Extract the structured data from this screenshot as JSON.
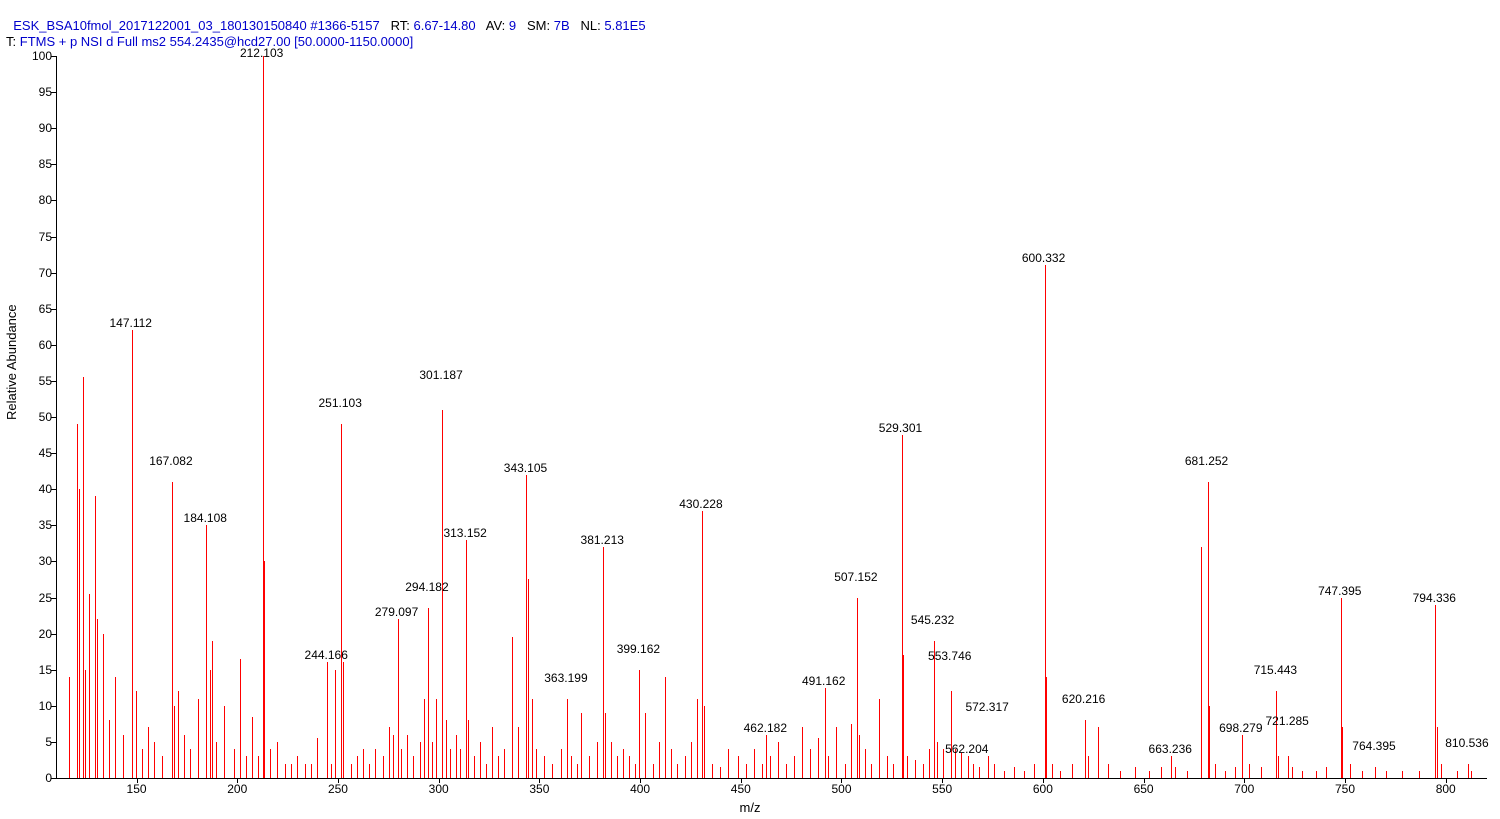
{
  "header": {
    "filename": "ESK_BSA10fmol_2017122001_03_180130150840",
    "scan_range": "#1366-5157",
    "rt_label": "RT:",
    "rt_value": "6.67-14.80",
    "av_label": "AV:",
    "av_value": "9",
    "sm_label": "SM:",
    "sm_value": "7B",
    "nl_label": "NL:",
    "nl_value": "5.81E5",
    "t_label": "T:",
    "t_value": "FTMS + p NSI d Full ms2 554.2435@hcd27.00 [50.0000-1150.0000]"
  },
  "chart": {
    "type": "mass-spectrum",
    "xlabel": "m/z",
    "ylabel": "Relative Abundance",
    "xlim": [
      110,
      820
    ],
    "ylim": [
      0,
      100
    ],
    "xtick_step": 50,
    "xtick_start": 150,
    "xtick_end": 800,
    "ytick_step": 5,
    "peak_color": "#ff0000",
    "text_color": "#000000",
    "background_color": "#ffffff",
    "label_fontsize": 12,
    "axis_fontsize": 13,
    "labeled_peaks": [
      {
        "mz": 147.112,
        "intensity": 62
      },
      {
        "mz": 167.082,
        "intensity": 41
      },
      {
        "mz": 184.108,
        "intensity": 35
      },
      {
        "mz": 212.103,
        "intensity": 100
      },
      {
        "mz": 244.166,
        "intensity": 16
      },
      {
        "mz": 251.103,
        "intensity": 49
      },
      {
        "mz": 279.097,
        "intensity": 22
      },
      {
        "mz": 294.182,
        "intensity": 23.5
      },
      {
        "mz": 301.187,
        "intensity": 51
      },
      {
        "mz": 313.152,
        "intensity": 33
      },
      {
        "mz": 343.105,
        "intensity": 42
      },
      {
        "mz": 363.199,
        "intensity": 11
      },
      {
        "mz": 381.213,
        "intensity": 32
      },
      {
        "mz": 399.162,
        "intensity": 15
      },
      {
        "mz": 430.228,
        "intensity": 37
      },
      {
        "mz": 462.182,
        "intensity": 6
      },
      {
        "mz": 491.162,
        "intensity": 12.5
      },
      {
        "mz": 507.152,
        "intensity": 25
      },
      {
        "mz": 529.301,
        "intensity": 47.5
      },
      {
        "mz": 545.232,
        "intensity": 19
      },
      {
        "mz": 553.746,
        "intensity": 12
      },
      {
        "mz": 562.204,
        "intensity": 3
      },
      {
        "mz": 572.317,
        "intensity": 3
      },
      {
        "mz": 600.332,
        "intensity": 71
      },
      {
        "mz": 620.216,
        "intensity": 8
      },
      {
        "mz": 663.236,
        "intensity": 3
      },
      {
        "mz": 681.252,
        "intensity": 41
      },
      {
        "mz": 698.279,
        "intensity": 6
      },
      {
        "mz": 715.443,
        "intensity": 12
      },
      {
        "mz": 721.285,
        "intensity": 3
      },
      {
        "mz": 747.395,
        "intensity": 25
      },
      {
        "mz": 764.395,
        "intensity": 1.5
      },
      {
        "mz": 794.336,
        "intensity": 24
      },
      {
        "mz": 810.536,
        "intensity": 2
      }
    ],
    "unlabeled_peaks": [
      {
        "mz": 116,
        "intensity": 14
      },
      {
        "mz": 120,
        "intensity": 49
      },
      {
        "mz": 121,
        "intensity": 40
      },
      {
        "mz": 123,
        "intensity": 55.5
      },
      {
        "mz": 124,
        "intensity": 15
      },
      {
        "mz": 126,
        "intensity": 25.5
      },
      {
        "mz": 129,
        "intensity": 39
      },
      {
        "mz": 130,
        "intensity": 22
      },
      {
        "mz": 133,
        "intensity": 20
      },
      {
        "mz": 136,
        "intensity": 8
      },
      {
        "mz": 139,
        "intensity": 14
      },
      {
        "mz": 143,
        "intensity": 6
      },
      {
        "mz": 149,
        "intensity": 12
      },
      {
        "mz": 152,
        "intensity": 4
      },
      {
        "mz": 155,
        "intensity": 7
      },
      {
        "mz": 158,
        "intensity": 5
      },
      {
        "mz": 162,
        "intensity": 3
      },
      {
        "mz": 168,
        "intensity": 10
      },
      {
        "mz": 170,
        "intensity": 12
      },
      {
        "mz": 173,
        "intensity": 6
      },
      {
        "mz": 176,
        "intensity": 4
      },
      {
        "mz": 180,
        "intensity": 11
      },
      {
        "mz": 186,
        "intensity": 15
      },
      {
        "mz": 187,
        "intensity": 19
      },
      {
        "mz": 189,
        "intensity": 5
      },
      {
        "mz": 193,
        "intensity": 10
      },
      {
        "mz": 198,
        "intensity": 4
      },
      {
        "mz": 201,
        "intensity": 16.5
      },
      {
        "mz": 204,
        "intensity": 3
      },
      {
        "mz": 207,
        "intensity": 8.5
      },
      {
        "mz": 210,
        "intensity": 3
      },
      {
        "mz": 213,
        "intensity": 30
      },
      {
        "mz": 216,
        "intensity": 4
      },
      {
        "mz": 219,
        "intensity": 5
      },
      {
        "mz": 223,
        "intensity": 2
      },
      {
        "mz": 226,
        "intensity": 2
      },
      {
        "mz": 229,
        "intensity": 3
      },
      {
        "mz": 233,
        "intensity": 2
      },
      {
        "mz": 236,
        "intensity": 2
      },
      {
        "mz": 239,
        "intensity": 5.5
      },
      {
        "mz": 246,
        "intensity": 2
      },
      {
        "mz": 248,
        "intensity": 15
      },
      {
        "mz": 252,
        "intensity": 16
      },
      {
        "mz": 256,
        "intensity": 2
      },
      {
        "mz": 259,
        "intensity": 3
      },
      {
        "mz": 262,
        "intensity": 4
      },
      {
        "mz": 265,
        "intensity": 2
      },
      {
        "mz": 268,
        "intensity": 4
      },
      {
        "mz": 272,
        "intensity": 3
      },
      {
        "mz": 275,
        "intensity": 7
      },
      {
        "mz": 277,
        "intensity": 6
      },
      {
        "mz": 281,
        "intensity": 4
      },
      {
        "mz": 284,
        "intensity": 6
      },
      {
        "mz": 287,
        "intensity": 3
      },
      {
        "mz": 290,
        "intensity": 5
      },
      {
        "mz": 292,
        "intensity": 11
      },
      {
        "mz": 296,
        "intensity": 5
      },
      {
        "mz": 298,
        "intensity": 11
      },
      {
        "mz": 303,
        "intensity": 8
      },
      {
        "mz": 305,
        "intensity": 4
      },
      {
        "mz": 308,
        "intensity": 6
      },
      {
        "mz": 310,
        "intensity": 4
      },
      {
        "mz": 314,
        "intensity": 8
      },
      {
        "mz": 317,
        "intensity": 3
      },
      {
        "mz": 320,
        "intensity": 5
      },
      {
        "mz": 323,
        "intensity": 2
      },
      {
        "mz": 326,
        "intensity": 7
      },
      {
        "mz": 329,
        "intensity": 3
      },
      {
        "mz": 332,
        "intensity": 4
      },
      {
        "mz": 336,
        "intensity": 19.5
      },
      {
        "mz": 339,
        "intensity": 7
      },
      {
        "mz": 344,
        "intensity": 27.5
      },
      {
        "mz": 346,
        "intensity": 11
      },
      {
        "mz": 348,
        "intensity": 4
      },
      {
        "mz": 352,
        "intensity": 3
      },
      {
        "mz": 356,
        "intensity": 2
      },
      {
        "mz": 360,
        "intensity": 4
      },
      {
        "mz": 365,
        "intensity": 3
      },
      {
        "mz": 368,
        "intensity": 2
      },
      {
        "mz": 370,
        "intensity": 9
      },
      {
        "mz": 374,
        "intensity": 3
      },
      {
        "mz": 378,
        "intensity": 5
      },
      {
        "mz": 382,
        "intensity": 9
      },
      {
        "mz": 385,
        "intensity": 5
      },
      {
        "mz": 388,
        "intensity": 3
      },
      {
        "mz": 391,
        "intensity": 4
      },
      {
        "mz": 394,
        "intensity": 3
      },
      {
        "mz": 397,
        "intensity": 2
      },
      {
        "mz": 402,
        "intensity": 9
      },
      {
        "mz": 406,
        "intensity": 2
      },
      {
        "mz": 409,
        "intensity": 5
      },
      {
        "mz": 412,
        "intensity": 14
      },
      {
        "mz": 415,
        "intensity": 4
      },
      {
        "mz": 418,
        "intensity": 2
      },
      {
        "mz": 422,
        "intensity": 3
      },
      {
        "mz": 425,
        "intensity": 5
      },
      {
        "mz": 428,
        "intensity": 11
      },
      {
        "mz": 431,
        "intensity": 10
      },
      {
        "mz": 435,
        "intensity": 2
      },
      {
        "mz": 439,
        "intensity": 1.5
      },
      {
        "mz": 443,
        "intensity": 4
      },
      {
        "mz": 448,
        "intensity": 3
      },
      {
        "mz": 452,
        "intensity": 2
      },
      {
        "mz": 456,
        "intensity": 4
      },
      {
        "mz": 460,
        "intensity": 2
      },
      {
        "mz": 464,
        "intensity": 3
      },
      {
        "mz": 468,
        "intensity": 5
      },
      {
        "mz": 472,
        "intensity": 2
      },
      {
        "mz": 476,
        "intensity": 3
      },
      {
        "mz": 480,
        "intensity": 7
      },
      {
        "mz": 484,
        "intensity": 4
      },
      {
        "mz": 488,
        "intensity": 5.5
      },
      {
        "mz": 493,
        "intensity": 3
      },
      {
        "mz": 497,
        "intensity": 7
      },
      {
        "mz": 501,
        "intensity": 2
      },
      {
        "mz": 504,
        "intensity": 7.5
      },
      {
        "mz": 508,
        "intensity": 6
      },
      {
        "mz": 511,
        "intensity": 4
      },
      {
        "mz": 514,
        "intensity": 2
      },
      {
        "mz": 518,
        "intensity": 11
      },
      {
        "mz": 522,
        "intensity": 3
      },
      {
        "mz": 525,
        "intensity": 2
      },
      {
        "mz": 530,
        "intensity": 17
      },
      {
        "mz": 532,
        "intensity": 3
      },
      {
        "mz": 536,
        "intensity": 2.5
      },
      {
        "mz": 540,
        "intensity": 2
      },
      {
        "mz": 543,
        "intensity": 4
      },
      {
        "mz": 547,
        "intensity": 5
      },
      {
        "mz": 550,
        "intensity": 4
      },
      {
        "mz": 556,
        "intensity": 4
      },
      {
        "mz": 559,
        "intensity": 3.5
      },
      {
        "mz": 565,
        "intensity": 2
      },
      {
        "mz": 568,
        "intensity": 1.5
      },
      {
        "mz": 575,
        "intensity": 2
      },
      {
        "mz": 580,
        "intensity": 1
      },
      {
        "mz": 585,
        "intensity": 1.5
      },
      {
        "mz": 590,
        "intensity": 1
      },
      {
        "mz": 595,
        "intensity": 2
      },
      {
        "mz": 601,
        "intensity": 14
      },
      {
        "mz": 604,
        "intensity": 2
      },
      {
        "mz": 608,
        "intensity": 1
      },
      {
        "mz": 614,
        "intensity": 2
      },
      {
        "mz": 622,
        "intensity": 3
      },
      {
        "mz": 627,
        "intensity": 7
      },
      {
        "mz": 632,
        "intensity": 2
      },
      {
        "mz": 638,
        "intensity": 1
      },
      {
        "mz": 645,
        "intensity": 1.5
      },
      {
        "mz": 652,
        "intensity": 1
      },
      {
        "mz": 658,
        "intensity": 1.5
      },
      {
        "mz": 665,
        "intensity": 1.5
      },
      {
        "mz": 671,
        "intensity": 1
      },
      {
        "mz": 678,
        "intensity": 32
      },
      {
        "mz": 682,
        "intensity": 10
      },
      {
        "mz": 685,
        "intensity": 2
      },
      {
        "mz": 690,
        "intensity": 1
      },
      {
        "mz": 695,
        "intensity": 1.5
      },
      {
        "mz": 702,
        "intensity": 2
      },
      {
        "mz": 708,
        "intensity": 1.5
      },
      {
        "mz": 716,
        "intensity": 3
      },
      {
        "mz": 723,
        "intensity": 1.5
      },
      {
        "mz": 728,
        "intensity": 1
      },
      {
        "mz": 735,
        "intensity": 1
      },
      {
        "mz": 740,
        "intensity": 1.5
      },
      {
        "mz": 748,
        "intensity": 7
      },
      {
        "mz": 752,
        "intensity": 2
      },
      {
        "mz": 758,
        "intensity": 1
      },
      {
        "mz": 770,
        "intensity": 1
      },
      {
        "mz": 778,
        "intensity": 1
      },
      {
        "mz": 786,
        "intensity": 1
      },
      {
        "mz": 795,
        "intensity": 7
      },
      {
        "mz": 797,
        "intensity": 2
      },
      {
        "mz": 805,
        "intensity": 1
      },
      {
        "mz": 812,
        "intensity": 1
      }
    ]
  }
}
